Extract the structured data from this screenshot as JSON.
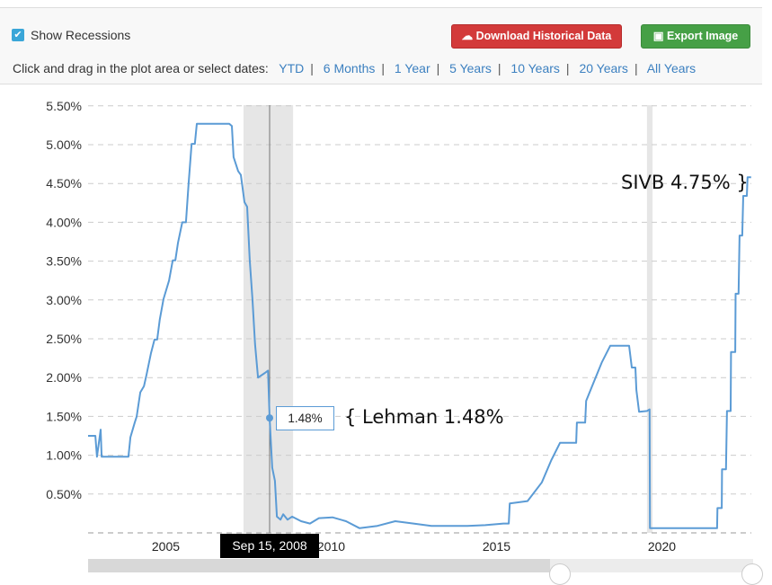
{
  "controls": {
    "show_recessions_label": "Show Recessions",
    "show_recessions_checked": true,
    "download_label": "Download Historical Data",
    "export_label": "Export Image",
    "range_prompt": "Click and drag in the plot area or select dates:",
    "ranges": [
      "YTD",
      "6 Months",
      "1 Year",
      "5 Years",
      "10 Years",
      "20 Years",
      "All Years"
    ]
  },
  "tooltip": {
    "value": "1.48%",
    "date": "Sep 15, 2008"
  },
  "annotations": {
    "lehman": "{ Lehman 1.48%",
    "sivb": "SIVB 4.75% }"
  },
  "colors": {
    "line": "#5b9bd5",
    "recession": "#e6e6e6",
    "download": "#d33a3a",
    "export": "#46a046",
    "link": "#3c80c0"
  },
  "chart_data": {
    "type": "line",
    "title": "",
    "xlabel": "",
    "ylabel": "",
    "x_ticks": [
      "2005",
      "2010",
      "2015",
      "2020"
    ],
    "y_ticks": [
      "0.50%",
      "1.00%",
      "1.50%",
      "2.00%",
      "2.50%",
      "3.00%",
      "3.50%",
      "4.00%",
      "4.50%",
      "5.00%",
      "5.50%"
    ],
    "ylim": [
      0,
      5.5
    ],
    "xlim": [
      2003.22,
      2023.27
    ],
    "grid": true,
    "recessions": [
      [
        2007.92,
        2009.42
      ],
      [
        2020.12,
        2020.29
      ]
    ],
    "highlight": {
      "x": 2008.71,
      "y": 1.48
    },
    "points": [
      [
        2003.22,
        1.25
      ],
      [
        2003.44,
        1.25
      ],
      [
        2003.49,
        0.98
      ],
      [
        2003.6,
        1.33
      ],
      [
        2003.63,
        0.98
      ],
      [
        2004.44,
        0.98
      ],
      [
        2004.5,
        1.23
      ],
      [
        2004.63,
        1.42
      ],
      [
        2004.69,
        1.5
      ],
      [
        2004.8,
        1.81
      ],
      [
        2004.91,
        1.89
      ],
      [
        2004.99,
        2.04
      ],
      [
        2005.12,
        2.31
      ],
      [
        2005.23,
        2.49
      ],
      [
        2005.31,
        2.49
      ],
      [
        2005.39,
        2.75
      ],
      [
        2005.5,
        3.01
      ],
      [
        2005.67,
        3.25
      ],
      [
        2005.78,
        3.51
      ],
      [
        2005.86,
        3.51
      ],
      [
        2005.94,
        3.74
      ],
      [
        2006.07,
        4.0
      ],
      [
        2006.18,
        4.0
      ],
      [
        2006.26,
        4.49
      ],
      [
        2006.35,
        5.01
      ],
      [
        2006.45,
        5.01
      ],
      [
        2006.51,
        5.27
      ],
      [
        2007.49,
        5.27
      ],
      [
        2007.57,
        5.24
      ],
      [
        2007.62,
        4.84
      ],
      [
        2007.76,
        4.66
      ],
      [
        2007.84,
        4.61
      ],
      [
        2007.95,
        4.26
      ],
      [
        2008.03,
        4.2
      ],
      [
        2008.11,
        3.51
      ],
      [
        2008.19,
        3.01
      ],
      [
        2008.27,
        2.43
      ],
      [
        2008.36,
        2.0
      ],
      [
        2008.57,
        2.06
      ],
      [
        2008.66,
        2.09
      ],
      [
        2008.71,
        1.48
      ],
      [
        2008.79,
        0.84
      ],
      [
        2008.87,
        0.67
      ],
      [
        2008.93,
        0.21
      ],
      [
        2009.04,
        0.17
      ],
      [
        2009.12,
        0.24
      ],
      [
        2009.25,
        0.17
      ],
      [
        2009.39,
        0.21
      ],
      [
        2009.66,
        0.15
      ],
      [
        2009.93,
        0.12
      ],
      [
        2010.2,
        0.19
      ],
      [
        2010.61,
        0.2
      ],
      [
        2011.02,
        0.15
      ],
      [
        2011.43,
        0.06
      ],
      [
        2011.97,
        0.09
      ],
      [
        2012.51,
        0.15
      ],
      [
        2013.06,
        0.12
      ],
      [
        2013.6,
        0.09
      ],
      [
        2014.14,
        0.09
      ],
      [
        2014.69,
        0.09
      ],
      [
        2015.23,
        0.1
      ],
      [
        2015.78,
        0.12
      ],
      [
        2015.94,
        0.12
      ],
      [
        2015.97,
        0.38
      ],
      [
        2016.51,
        0.41
      ],
      [
        2016.94,
        0.65
      ],
      [
        2017.22,
        0.93
      ],
      [
        2017.49,
        1.16
      ],
      [
        2017.98,
        1.16
      ],
      [
        2018.0,
        1.42
      ],
      [
        2018.25,
        1.42
      ],
      [
        2018.28,
        1.7
      ],
      [
        2018.49,
        1.92
      ],
      [
        2018.76,
        2.2
      ],
      [
        2019.01,
        2.41
      ],
      [
        2019.58,
        2.41
      ],
      [
        2019.66,
        2.13
      ],
      [
        2019.77,
        2.13
      ],
      [
        2019.8,
        1.84
      ],
      [
        2019.88,
        1.56
      ],
      [
        2020.12,
        1.57
      ],
      [
        2020.2,
        1.59
      ],
      [
        2020.21,
        0.06
      ],
      [
        2022.24,
        0.06
      ],
      [
        2022.25,
        0.32
      ],
      [
        2022.38,
        0.32
      ],
      [
        2022.39,
        0.82
      ],
      [
        2022.51,
        0.82
      ],
      [
        2022.54,
        1.57
      ],
      [
        2022.65,
        1.57
      ],
      [
        2022.66,
        2.33
      ],
      [
        2022.79,
        2.33
      ],
      [
        2022.8,
        3.08
      ],
      [
        2022.89,
        3.08
      ],
      [
        2022.92,
        3.83
      ],
      [
        2023.0,
        3.83
      ],
      [
        2023.03,
        4.34
      ],
      [
        2023.14,
        4.34
      ],
      [
        2023.16,
        4.58
      ],
      [
        2023.27,
        4.58
      ]
    ]
  }
}
